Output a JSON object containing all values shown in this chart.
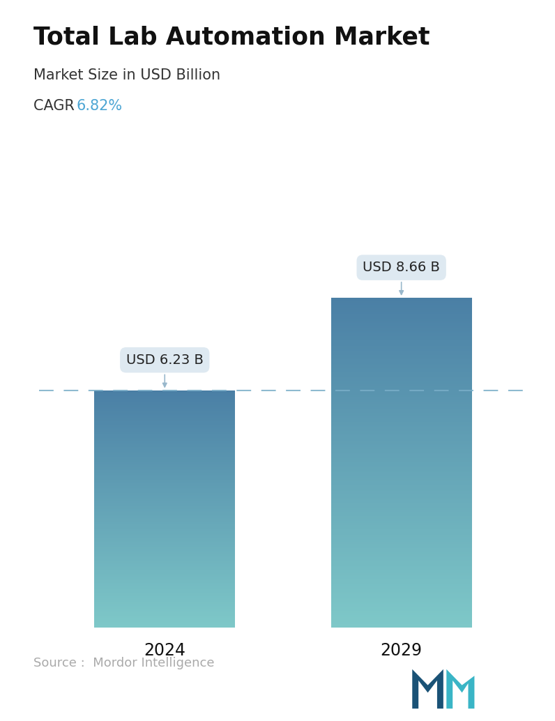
{
  "title": "Total Lab Automation Market",
  "subtitle": "Market Size in USD Billion",
  "cagr_label": "CAGR  ",
  "cagr_value": "6.82%",
  "cagr_color": "#4da6d4",
  "categories": [
    "2024",
    "2029"
  ],
  "values": [
    6.23,
    8.66
  ],
  "bar_labels": [
    "USD 6.23 B",
    "USD 8.66 B"
  ],
  "bar_top_color": "#4a7fa5",
  "bar_bottom_color": "#7ec8c8",
  "dashed_line_color": "#7aaec8",
  "dashed_line_value": 6.23,
  "source_text": "Source :  Mordor Intelligence",
  "source_color": "#aaaaaa",
  "background_color": "#ffffff",
  "title_fontsize": 25,
  "subtitle_fontsize": 15,
  "cagr_fontsize": 15,
  "bar_label_fontsize": 14,
  "xlabel_fontsize": 17,
  "source_fontsize": 13,
  "ylim": [
    0,
    10.8
  ],
  "bar_width": 0.28,
  "x_positions": [
    0.25,
    0.72
  ]
}
